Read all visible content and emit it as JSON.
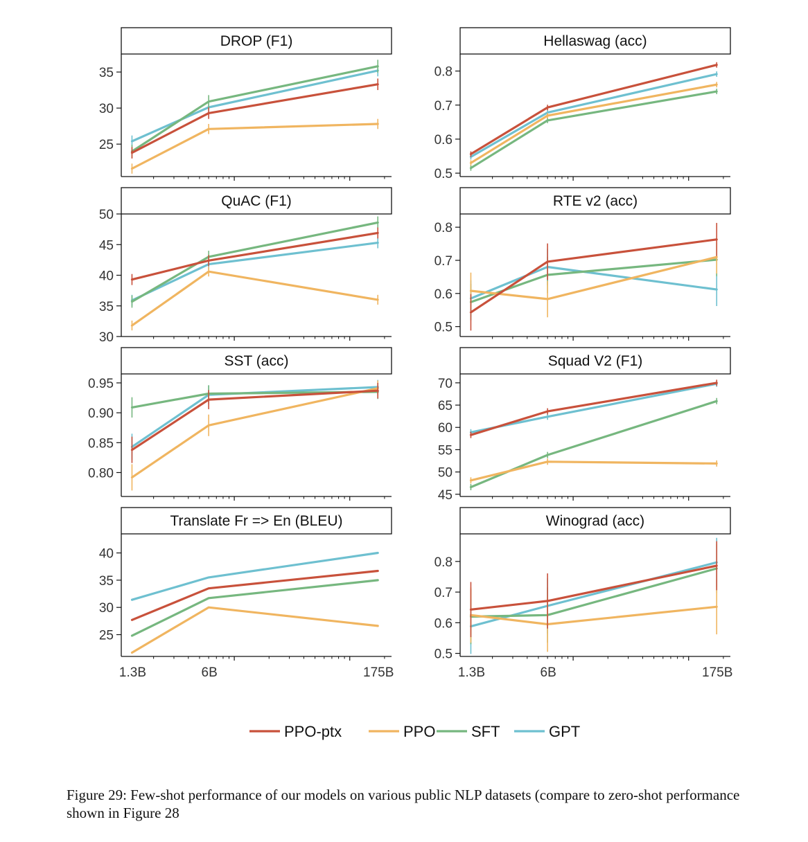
{
  "colors": {
    "PPO-ptx": "#c8513b",
    "PPO": "#f0b560",
    "SFT": "#76b77f",
    "GPT": "#6ec0d0"
  },
  "legend": [
    "PPO-ptx",
    "PPO",
    "SFT",
    "GPT"
  ],
  "caption": "Figure 29: Few-shot performance of our models on various public NLP datasets (compare to zero-shot performance shown in Figure 28",
  "chart_data": [
    {
      "type": "line",
      "title": "DROP (F1)",
      "x": [
        "1.3B",
        "6B",
        "175B"
      ],
      "x_params": [
        1.3,
        6,
        175
      ],
      "yticks": [
        25,
        30,
        35
      ],
      "ylim": [
        20.5,
        37.5
      ],
      "series": [
        {
          "name": "PPO-ptx",
          "values": [
            23.8,
            29.3,
            33.3
          ],
          "err": [
            0.8,
            0.8,
            0.8
          ]
        },
        {
          "name": "PPO",
          "values": [
            21.6,
            27.1,
            27.8
          ],
          "err": [
            0.7,
            0.7,
            0.7
          ]
        },
        {
          "name": "SFT",
          "values": [
            24.0,
            30.9,
            35.8
          ],
          "err": [
            0.9,
            0.9,
            0.9
          ]
        },
        {
          "name": "GPT",
          "values": [
            25.4,
            30.1,
            35.2
          ],
          "err": [
            0.8,
            0.8,
            0.8
          ]
        }
      ]
    },
    {
      "type": "line",
      "title": "Hellaswag (acc)",
      "x": [
        "1.3B",
        "6B",
        "175B"
      ],
      "x_params": [
        1.3,
        6,
        175
      ],
      "yticks": [
        0.5,
        0.6,
        0.7,
        0.8
      ],
      "ylim": [
        0.49,
        0.85
      ],
      "series": [
        {
          "name": "PPO-ptx",
          "values": [
            0.556,
            0.693,
            0.818
          ],
          "err": [
            0.008,
            0.008,
            0.008
          ]
        },
        {
          "name": "PPO",
          "values": [
            0.53,
            0.669,
            0.76
          ],
          "err": [
            0.008,
            0.008,
            0.008
          ]
        },
        {
          "name": "SFT",
          "values": [
            0.515,
            0.655,
            0.74
          ],
          "err": [
            0.008,
            0.008,
            0.008
          ]
        },
        {
          "name": "GPT",
          "values": [
            0.548,
            0.678,
            0.791
          ],
          "err": [
            0.008,
            0.008,
            0.008
          ]
        }
      ]
    },
    {
      "type": "line",
      "title": "QuAC (F1)",
      "x": [
        "1.3B",
        "6B",
        "175B"
      ],
      "x_params": [
        1.3,
        6,
        175
      ],
      "yticks": [
        30,
        35,
        40,
        45,
        50
      ],
      "ylim": [
        30,
        50
      ],
      "series": [
        {
          "name": "PPO-ptx",
          "values": [
            39.3,
            42.4,
            46.9
          ],
          "err": [
            0.9,
            0.9,
            0.9
          ]
        },
        {
          "name": "PPO",
          "values": [
            31.8,
            40.6,
            36.0
          ],
          "err": [
            0.8,
            0.8,
            0.8
          ]
        },
        {
          "name": "SFT",
          "values": [
            35.7,
            43.0,
            48.6
          ],
          "err": [
            1.0,
            1.0,
            1.0
          ]
        },
        {
          "name": "GPT",
          "values": [
            35.9,
            41.8,
            45.3
          ],
          "err": [
            0.9,
            0.9,
            0.9
          ]
        }
      ]
    },
    {
      "type": "line",
      "title": "RTE v2 (acc)",
      "x": [
        "1.3B",
        "6B",
        "175B"
      ],
      "x_params": [
        1.3,
        6,
        175
      ],
      "yticks": [
        0.5,
        0.6,
        0.7,
        0.8
      ],
      "ylim": [
        0.47,
        0.84
      ],
      "series": [
        {
          "name": "PPO-ptx",
          "values": [
            0.543,
            0.696,
            0.763
          ],
          "err": [
            0.055,
            0.055,
            0.05
          ]
        },
        {
          "name": "PPO",
          "values": [
            0.608,
            0.583,
            0.71
          ],
          "err": [
            0.055,
            0.055,
            0.05
          ]
        },
        {
          "name": "SFT",
          "values": [
            0.574,
            0.656,
            0.702
          ],
          "err": [
            0.055,
            0.055,
            0.05
          ]
        },
        {
          "name": "GPT",
          "values": [
            0.585,
            0.68,
            0.612
          ],
          "err": [
            0.055,
            0.055,
            0.05
          ]
        }
      ]
    },
    {
      "type": "line",
      "title": "SST (acc)",
      "x": [
        "1.3B",
        "6B",
        "175B"
      ],
      "x_params": [
        1.3,
        6,
        175
      ],
      "yticks": [
        0.8,
        0.85,
        0.9,
        0.95
      ],
      "ylim": [
        0.76,
        0.965
      ],
      "series": [
        {
          "name": "PPO-ptx",
          "values": [
            0.838,
            0.922,
            0.937
          ],
          "err": [
            0.022,
            0.016,
            0.013
          ]
        },
        {
          "name": "PPO",
          "values": [
            0.792,
            0.879,
            0.941
          ],
          "err": [
            0.022,
            0.018,
            0.013
          ]
        },
        {
          "name": "SFT",
          "values": [
            0.909,
            0.932,
            0.935
          ],
          "err": [
            0.017,
            0.014,
            0.012
          ]
        },
        {
          "name": "GPT",
          "values": [
            0.843,
            0.93,
            0.943
          ],
          "err": [
            0.022,
            0.016,
            0.012
          ]
        }
      ]
    },
    {
      "type": "line",
      "title": "Squad V2 (F1)",
      "x": [
        "1.3B",
        "6B",
        "175B"
      ],
      "x_params": [
        1.3,
        6,
        175
      ],
      "yticks": [
        45,
        50,
        55,
        60,
        65,
        70
      ],
      "ylim": [
        44.5,
        72
      ],
      "series": [
        {
          "name": "PPO-ptx",
          "values": [
            58.3,
            63.6,
            70.0
          ],
          "err": [
            0.7,
            0.7,
            0.7
          ]
        },
        {
          "name": "PPO",
          "values": [
            48.1,
            52.3,
            51.9
          ],
          "err": [
            0.7,
            0.7,
            0.7
          ]
        },
        {
          "name": "SFT",
          "values": [
            46.6,
            53.8,
            65.9
          ],
          "err": [
            0.7,
            0.7,
            0.7
          ]
        },
        {
          "name": "GPT",
          "values": [
            58.9,
            62.4,
            69.8
          ],
          "err": [
            0.7,
            0.7,
            0.7
          ]
        }
      ]
    },
    {
      "type": "line",
      "title": "Translate Fr => En (BLEU)",
      "x": [
        "1.3B",
        "6B",
        "175B"
      ],
      "x_params": [
        1.3,
        6,
        175
      ],
      "yticks": [
        25,
        30,
        35,
        40
      ],
      "ylim": [
        21,
        43.5
      ],
      "series": [
        {
          "name": "PPO-ptx",
          "values": [
            27.7,
            33.5,
            36.7
          ]
        },
        {
          "name": "PPO",
          "values": [
            21.7,
            30.0,
            26.6
          ]
        },
        {
          "name": "SFT",
          "values": [
            24.8,
            31.7,
            35.0
          ]
        },
        {
          "name": "GPT",
          "values": [
            31.4,
            35.5,
            40.0
          ]
        }
      ]
    },
    {
      "type": "line",
      "title": "Winograd (acc)",
      "x": [
        "1.3B",
        "6B",
        "175B"
      ],
      "x_params": [
        1.3,
        6,
        175
      ],
      "yticks": [
        0.5,
        0.6,
        0.7,
        0.8
      ],
      "ylim": [
        0.49,
        0.89
      ],
      "series": [
        {
          "name": "PPO-ptx",
          "values": [
            0.643,
            0.671,
            0.786
          ],
          "err": [
            0.09,
            0.09,
            0.08
          ]
        },
        {
          "name": "PPO",
          "values": [
            0.625,
            0.595,
            0.652
          ],
          "err": [
            0.09,
            0.09,
            0.09
          ]
        },
        {
          "name": "SFT",
          "values": [
            0.62,
            0.625,
            0.777
          ],
          "err": [
            0.09,
            0.09,
            0.08
          ]
        },
        {
          "name": "GPT",
          "values": [
            0.588,
            0.655,
            0.797
          ],
          "err": [
            0.09,
            0.09,
            0.08
          ]
        }
      ]
    }
  ]
}
